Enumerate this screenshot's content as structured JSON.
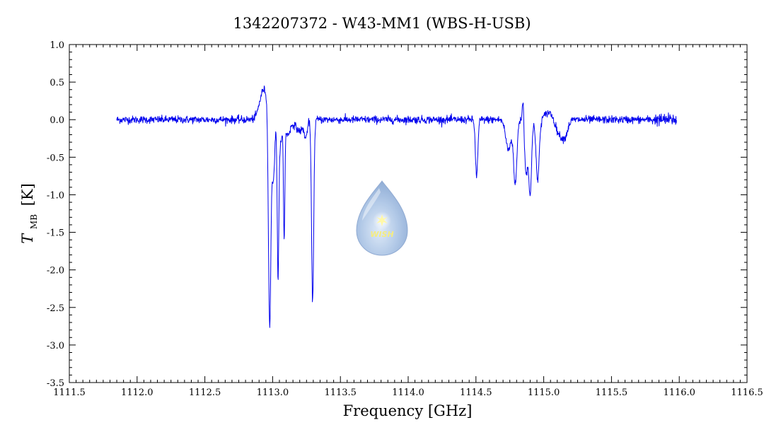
{
  "chart_data": {
    "type": "line",
    "title": "1342207372 - W43-MM1 (WBS-H-USB)",
    "xlabel": "Frequency [GHz]",
    "ylabel_symbol": "T",
    "ylabel_subscript": "MB",
    "ylabel_unit": "[K]",
    "xlim": [
      1111.5,
      1116.5
    ],
    "ylim": [
      -3.5,
      1.0
    ],
    "x_ticks": [
      1111.5,
      1112.0,
      1112.5,
      1113.0,
      1113.5,
      1114.0,
      1114.5,
      1115.0,
      1115.5,
      1116.0,
      1116.5
    ],
    "x_tick_labels": [
      "1111.5",
      "1112.0",
      "1112.5",
      "1113.0",
      "1113.5",
      "1114.0",
      "1114.5",
      "1115.0",
      "1115.5",
      "1116.0",
      "1116.5"
    ],
    "y_ticks": [
      -3.5,
      -3.0,
      -2.5,
      -2.0,
      -1.5,
      -1.0,
      -0.5,
      0.0,
      0.5,
      1.0
    ],
    "y_tick_labels": [
      "-3.5",
      "-3.0",
      "-2.5",
      "-2.0",
      "-1.5",
      "-1.0",
      "-0.5",
      "0.0",
      "0.5",
      "1.0"
    ],
    "grid": false,
    "series": [
      {
        "color": "#0000ee",
        "x_range": [
          1111.85,
          1115.98
        ],
        "noise_rms": 0.025,
        "baseline": 0.0,
        "features": [
          {
            "center": 1112.935,
            "amplitude": 0.4,
            "width": 0.03
          },
          {
            "center": 1112.978,
            "amplitude": -2.87,
            "width": 0.009
          },
          {
            "center": 1113.005,
            "amplitude": -0.8,
            "width": 0.01
          },
          {
            "center": 1113.04,
            "amplitude": -2.1,
            "width": 0.006
          },
          {
            "center": 1113.06,
            "amplitude": -0.3,
            "width": 0.01
          },
          {
            "center": 1113.085,
            "amplitude": -1.5,
            "width": 0.005
          },
          {
            "center": 1113.11,
            "amplitude": -0.2,
            "width": 0.02
          },
          {
            "center": 1113.2,
            "amplitude": -0.15,
            "width": 0.03
          },
          {
            "center": 1113.245,
            "amplitude": -0.2,
            "width": 0.01
          },
          {
            "center": 1113.295,
            "amplitude": -2.42,
            "width": 0.008
          },
          {
            "center": 1114.505,
            "amplitude": -0.75,
            "width": 0.009
          },
          {
            "center": 1114.74,
            "amplitude": -0.4,
            "width": 0.02
          },
          {
            "center": 1114.79,
            "amplitude": -0.85,
            "width": 0.012
          },
          {
            "center": 1114.848,
            "amplitude": 0.35,
            "width": 0.006
          },
          {
            "center": 1114.87,
            "amplitude": -0.7,
            "width": 0.012
          },
          {
            "center": 1114.9,
            "amplitude": -1.0,
            "width": 0.01
          },
          {
            "center": 1114.955,
            "amplitude": -0.8,
            "width": 0.012
          },
          {
            "center": 1115.04,
            "amplitude": 0.1,
            "width": 0.03
          },
          {
            "center": 1115.12,
            "amplitude": -0.2,
            "width": 0.03
          },
          {
            "center": 1115.16,
            "amplitude": -0.15,
            "width": 0.02
          }
        ]
      }
    ]
  },
  "watermark": {
    "label": "WISH",
    "drop_color": "#8fb0dc",
    "star_color": "#fff79a"
  }
}
